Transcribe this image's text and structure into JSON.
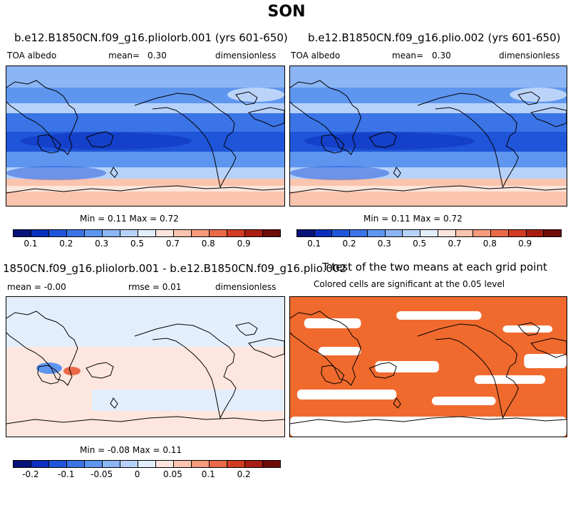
{
  "figure": {
    "title": "SON"
  },
  "colors": {
    "abs_scale": [
      "#08137a",
      "#0c2fbe",
      "#1f55d8",
      "#3a74e6",
      "#5e95ef",
      "#8bb5f5",
      "#b7d2fa",
      "#e3eefd",
      "#fde6dd",
      "#fbc4ae",
      "#f59a7c",
      "#ea6a48",
      "#d23c22",
      "#a81e12",
      "#6e0c08"
    ],
    "diff_scale": [
      "#08137a",
      "#0c2fbe",
      "#1f55d8",
      "#3a74e6",
      "#5e95ef",
      "#8bb5f5",
      "#b7d2fa",
      "#e3eefd",
      "#fde6dd",
      "#fbc4ae",
      "#f59a7c",
      "#ea6a48",
      "#d23c22",
      "#a81e12",
      "#6e0c08"
    ],
    "significant": "#f06a2e",
    "coast": "#000000"
  },
  "panels": {
    "p1": {
      "title": "b.e12.B1850CN.f09_g16.pliolorb.001 (yrs 601-650)",
      "left": "TOA albedo",
      "mean_label": "mean=",
      "mean": "0.30",
      "right": "dimensionless",
      "minmax": "Min =   0.11 Max =   0.72"
    },
    "p2": {
      "title": "b.e12.B1850CN.f09_g16.plio.002 (yrs 601-650)",
      "left": "TOA albedo",
      "mean_label": "mean=",
      "mean": "0.30",
      "right": "dimensionless",
      "minmax": "Min =   0.11 Max =   0.72"
    },
    "p3": {
      "title": "1850CN.f09_g16.pliolorb.001 - b.e12.B1850CN.f09_g16.plio.002",
      "left": "mean =  -0.00",
      "middle": "rmse =   0.01",
      "right": "dimensionless",
      "minmax": "Min =  -0.08 Max =   0.11"
    },
    "p4": {
      "title": "T-test of the two means at each grid point",
      "subtitle": "Colored cells are significant at the 0.05 level"
    }
  },
  "colorbars": {
    "abs_ticks": [
      "0.1",
      "0.2",
      "0.3",
      "0.5",
      "0.7",
      "0.8",
      "0.9"
    ],
    "abs_tick_index": [
      1,
      3,
      5,
      7,
      9,
      11,
      13
    ],
    "diff_ticks": [
      "-0.2",
      "-0.1",
      "-0.05",
      "0",
      "0.05",
      "0.1",
      "0.2"
    ],
    "diff_tick_index": [
      1,
      3,
      5,
      7,
      9,
      11,
      13
    ]
  }
}
